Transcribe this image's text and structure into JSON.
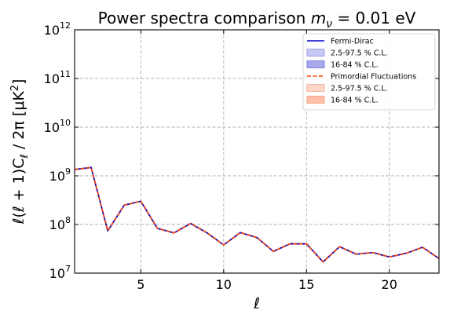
{
  "chart_data": {
    "type": "line",
    "title": "Power spectra comparison m_ν = 0.01 eV",
    "title_parts": {
      "prefix": "Power spectra comparison ",
      "math": "m",
      "sub": "ν",
      "suffix": " = 0.01 eV"
    },
    "xlabel": "ℓ",
    "ylabel": "ℓ(ℓ + 1)C_ℓ / 2π [μK²]",
    "ylabel_parts": {
      "main": "ℓ(ℓ + 1)C",
      "sub": "ℓ",
      "rest": " / 2π [μK",
      "sup": "2",
      "end": "]"
    },
    "xlim": [
      1,
      23
    ],
    "ylim": [
      10000000,
      1000000000000
    ],
    "yscale": "log",
    "grid": true,
    "legend_position": "top-right",
    "x_ticks": [
      5,
      10,
      15,
      20
    ],
    "y_ticks": [
      {
        "value": 10000000,
        "base": "10",
        "exp": "7"
      },
      {
        "value": 100000000,
        "base": "10",
        "exp": "8"
      },
      {
        "value": 1000000000,
        "base": "10",
        "exp": "9"
      },
      {
        "value": 10000000000,
        "base": "10",
        "exp": "10"
      },
      {
        "value": 100000000000,
        "base": "10",
        "exp": "11"
      },
      {
        "value": 1000000000000,
        "base": "10",
        "exp": "12"
      }
    ],
    "x": [
      1,
      2,
      3,
      4,
      5,
      6,
      7,
      8,
      9,
      10,
      11,
      12,
      13,
      14,
      15,
      16,
      17,
      18,
      19,
      20,
      21,
      22,
      23
    ],
    "series": [
      {
        "name": "Fermi-Dirac",
        "color": "#0000cc",
        "style": "solid",
        "values": [
          1350000000,
          1480000000,
          74000000,
          250000000,
          300000000,
          83000000,
          67000000,
          105000000,
          67000000,
          38000000,
          68000000,
          54000000,
          28000000,
          40000000,
          40000000,
          17000000,
          35000000,
          24500000,
          26500000,
          21500000,
          25500000,
          34000000,
          20000000
        ]
      },
      {
        "name": "Primordial Fluctuations",
        "color": "#ff4400",
        "style": "dashed",
        "values": [
          1350000000,
          1480000000,
          74000000,
          250000000,
          300000000,
          83000000,
          67000000,
          105000000,
          67000000,
          38000000,
          68000000,
          54000000,
          28000000,
          40000000,
          40000000,
          17000000,
          35000000,
          24500000,
          26500000,
          21500000,
          25500000,
          34000000,
          20000000
        ]
      }
    ],
    "legend": [
      {
        "label": "Fermi-Dirac",
        "kind": "line",
        "color": "#0000cc",
        "dashed": false
      },
      {
        "label": "2.5-97.5 % C.L.",
        "kind": "patch",
        "color": "#c8c8f4",
        "edge": "#9090e0"
      },
      {
        "label": "16-84 % C.L.",
        "kind": "patch",
        "color": "#a8a8ec",
        "edge": "#7070d8"
      },
      {
        "label": "Primordial Fluctuations",
        "kind": "line",
        "color": "#ff4400",
        "dashed": true
      },
      {
        "label": "2.5-97.5 % C.L.",
        "kind": "patch",
        "color": "#ffd6c8",
        "edge": "#f0a890"
      },
      {
        "label": "16-84 % C.L.",
        "kind": "patch",
        "color": "#ffbfa8",
        "edge": "#f09878"
      }
    ]
  }
}
